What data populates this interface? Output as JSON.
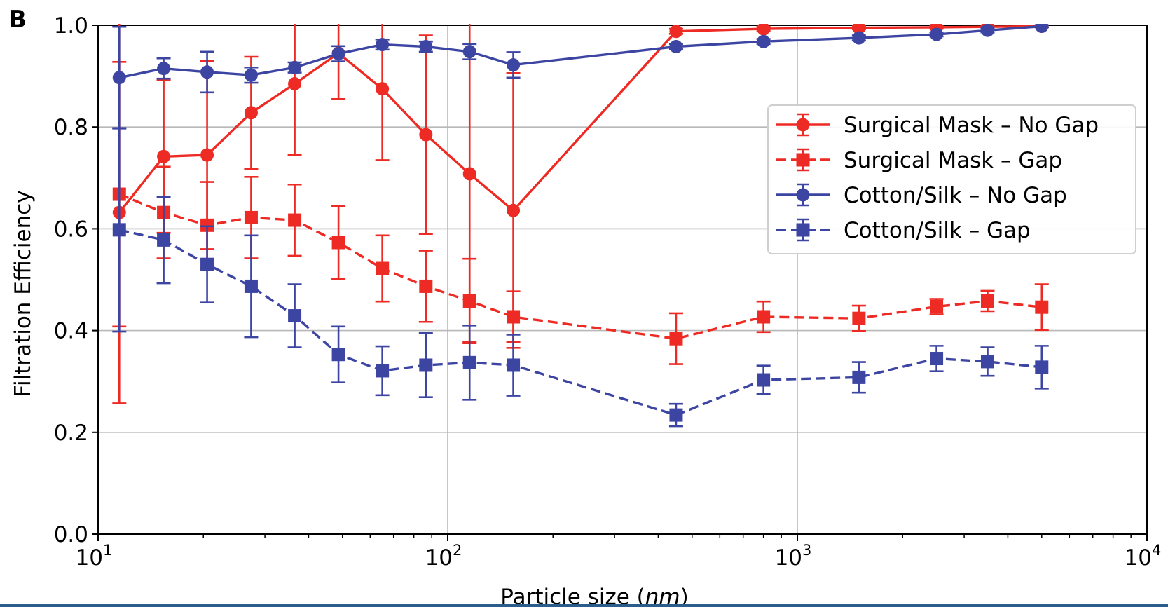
{
  "panel_label": "B",
  "chart_data": {
    "type": "line",
    "xlabel_prefix": "Particle size (",
    "xlabel_unit": "nm",
    "xlabel_suffix": ")",
    "ylabel": "Filtration Efficiency",
    "xscale": "log",
    "xlim": [
      10,
      10000
    ],
    "ylim": [
      0,
      1.0
    ],
    "grid": true,
    "legend_position": "upper-right",
    "x_major_ticks": [
      {
        "value": 10,
        "base": "10",
        "exp": "1"
      },
      {
        "value": 100,
        "base": "10",
        "exp": "2"
      },
      {
        "value": 1000,
        "base": "10",
        "exp": "3"
      },
      {
        "value": 10000,
        "base": "10",
        "exp": "4"
      }
    ],
    "y_ticks": [
      {
        "value": 0,
        "label": "0.0"
      },
      {
        "value": 0.2,
        "label": "0.2"
      },
      {
        "value": 0.4,
        "label": "0.4"
      },
      {
        "value": 0.6,
        "label": "0.6"
      },
      {
        "value": 0.8,
        "label": "0.8"
      },
      {
        "value": 1.0,
        "label": "1.0"
      }
    ],
    "series": [
      {
        "name": "Surgical Mask – No Gap",
        "color": "#ee2a24",
        "marker": "circle",
        "dashed": false,
        "x": [
          11.5,
          15.4,
          20.5,
          27.4,
          36.5,
          48.7,
          65,
          86.6,
          115.5,
          154,
          450,
          800,
          1500,
          2500,
          3500,
          5000
        ],
        "y": [
          0.632,
          0.742,
          0.745,
          0.828,
          0.885,
          0.945,
          0.875,
          0.785,
          0.708,
          0.636,
          0.988,
          0.993,
          0.995,
          0.996,
          0.997,
          0.998
        ],
        "err": [
          0.375,
          0.15,
          0.185,
          0.11,
          0.14,
          0.09,
          0.14,
          0.195,
          0.33,
          0.27,
          0.005,
          0.004,
          0.003,
          0.003,
          0.002,
          0.002
        ]
      },
      {
        "name": "Surgical Mask – Gap",
        "color": "#ee2a24",
        "marker": "square",
        "dashed": true,
        "x": [
          11.5,
          15.4,
          20.5,
          27.4,
          36.5,
          48.7,
          65,
          86.6,
          115.5,
          154,
          450,
          800,
          1500,
          2500,
          3500,
          5000
        ],
        "y": [
          0.668,
          0.632,
          0.607,
          0.622,
          0.617,
          0.573,
          0.522,
          0.487,
          0.458,
          0.427,
          0.384,
          0.427,
          0.424,
          0.447,
          0.458,
          0.446
        ],
        "err": [
          0.26,
          0.09,
          0.085,
          0.08,
          0.07,
          0.072,
          0.065,
          0.07,
          0.083,
          0.05,
          0.05,
          0.03,
          0.025,
          0.015,
          0.02,
          0.045
        ]
      },
      {
        "name": "Cotton/Silk – No Gap",
        "color": "#3d45a3",
        "marker": "circle",
        "dashed": false,
        "x": [
          11.5,
          15.4,
          20.5,
          27.4,
          36.5,
          48.7,
          65,
          86.6,
          115.5,
          154,
          450,
          800,
          1500,
          2500,
          3500,
          5000
        ],
        "y": [
          0.897,
          0.915,
          0.908,
          0.902,
          0.917,
          0.944,
          0.962,
          0.958,
          0.948,
          0.922,
          0.958,
          0.968,
          0.975,
          0.982,
          0.99,
          0.998
        ],
        "err": [
          0.1,
          0.02,
          0.04,
          0.015,
          0.01,
          0.015,
          0.01,
          0.01,
          0.015,
          0.025,
          0.005,
          0.005,
          0.005,
          0.004,
          0.004,
          0.002
        ]
      },
      {
        "name": "Cotton/Silk – Gap",
        "color": "#3d45a3",
        "marker": "square",
        "dashed": true,
        "x": [
          11.5,
          15.4,
          20.5,
          27.4,
          36.5,
          48.7,
          65,
          86.6,
          115.5,
          154,
          450,
          800,
          1500,
          2500,
          3500,
          5000
        ],
        "y": [
          0.598,
          0.578,
          0.53,
          0.487,
          0.429,
          0.353,
          0.321,
          0.332,
          0.337,
          0.332,
          0.234,
          0.303,
          0.308,
          0.345,
          0.339,
          0.328
        ],
        "err": [
          0.2,
          0.085,
          0.075,
          0.1,
          0.062,
          0.055,
          0.048,
          0.063,
          0.073,
          0.06,
          0.022,
          0.028,
          0.03,
          0.025,
          0.028,
          0.042
        ]
      }
    ]
  }
}
